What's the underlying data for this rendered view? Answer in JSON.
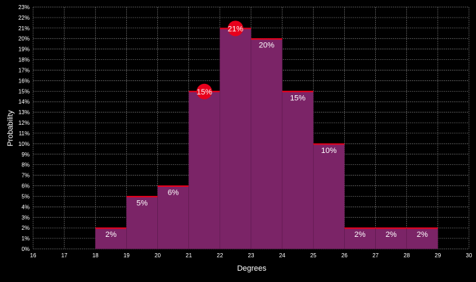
{
  "chart_data": {
    "type": "bar",
    "xlabel": "Degrees",
    "ylabel": "Probability",
    "xlim": [
      16,
      30
    ],
    "ylim": [
      0,
      23
    ],
    "x_ticks": [
      "16",
      "17",
      "18",
      "19",
      "20",
      "21",
      "22",
      "23",
      "24",
      "25",
      "26",
      "27",
      "28",
      "29",
      "30"
    ],
    "y_ticks": [
      "0%",
      "1%",
      "2%",
      "3%",
      "4%",
      "5%",
      "6%",
      "7%",
      "8%",
      "9%",
      "10%",
      "11%",
      "12%",
      "13%",
      "14%",
      "15%",
      "16%",
      "17%",
      "18%",
      "19%",
      "20%",
      "21%",
      "22%",
      "23%"
    ],
    "bins": [
      {
        "x0": 18,
        "x1": 19,
        "value": 2,
        "label": "2%",
        "highlight": false
      },
      {
        "x0": 19,
        "x1": 20,
        "value": 5,
        "label": "5%",
        "highlight": false
      },
      {
        "x0": 20,
        "x1": 21,
        "value": 6,
        "label": "6%",
        "highlight": false
      },
      {
        "x0": 21,
        "x1": 22,
        "value": 15,
        "label": "15%",
        "highlight": true
      },
      {
        "x0": 22,
        "x1": 23,
        "value": 21,
        "label": "21%",
        "highlight": true
      },
      {
        "x0": 23,
        "x1": 24,
        "value": 20,
        "label": "20%",
        "highlight": false
      },
      {
        "x0": 24,
        "x1": 25,
        "value": 15,
        "label": "15%",
        "highlight": false
      },
      {
        "x0": 25,
        "x1": 26,
        "value": 10,
        "label": "10%",
        "highlight": false
      },
      {
        "x0": 26,
        "x1": 27,
        "value": 2,
        "label": "2%",
        "highlight": false
      },
      {
        "x0": 27,
        "x1": 28,
        "value": 2,
        "label": "2%",
        "highlight": false
      },
      {
        "x0": 28,
        "x1": 29,
        "value": 2,
        "label": "2%",
        "highlight": false
      }
    ],
    "grid": true,
    "colors": {
      "background": "#000000",
      "bar_fill": "#7b2467",
      "bar_top": "#e8001c",
      "highlight_marker": "#e8001c",
      "grid": "#6e6e6e",
      "text": "#ffffff"
    }
  }
}
